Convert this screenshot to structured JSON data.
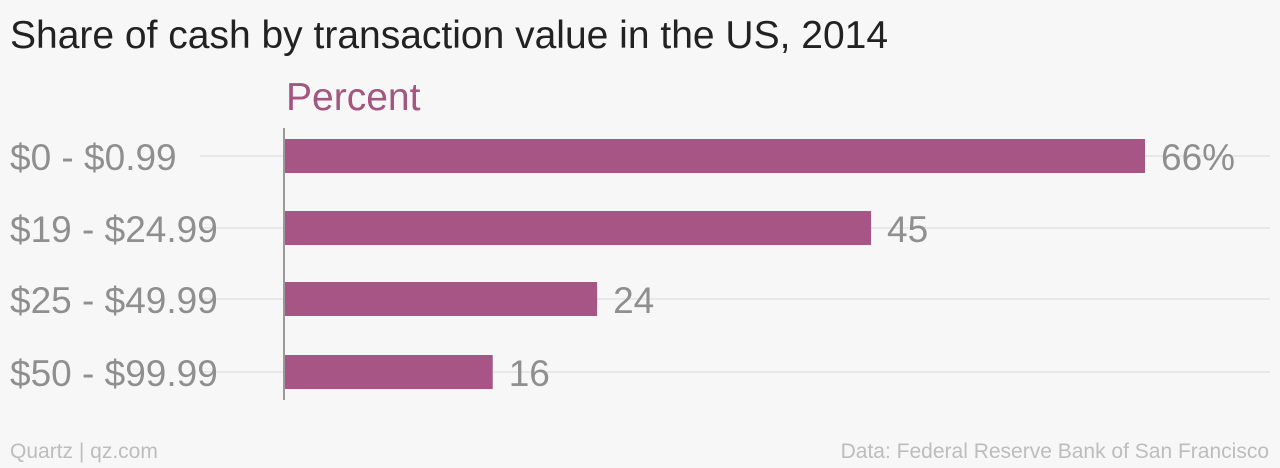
{
  "header": {
    "title": "Share of cash by transaction value in the US, 2014"
  },
  "footer": {
    "brand": "Quartz | qz.com",
    "source": "Data: Federal Reserve Bank of San Francisco"
  },
  "colors": {
    "bar": "#a75584",
    "unit": "#a3567f",
    "label": "#8f8f8f",
    "gridline": "#e4e4e4",
    "axis": "#999999"
  },
  "chart_data": {
    "type": "bar",
    "orientation": "horizontal",
    "unit_label": "Percent",
    "categories": [
      "$0 - $0.99",
      "$19 - $24.99",
      "$25 - $49.99",
      "$50 - $99.99"
    ],
    "values": [
      66,
      45,
      24,
      16
    ],
    "value_labels": [
      "66%",
      "45",
      "24",
      "16"
    ],
    "xlim": [
      0,
      66
    ],
    "grid": true
  }
}
